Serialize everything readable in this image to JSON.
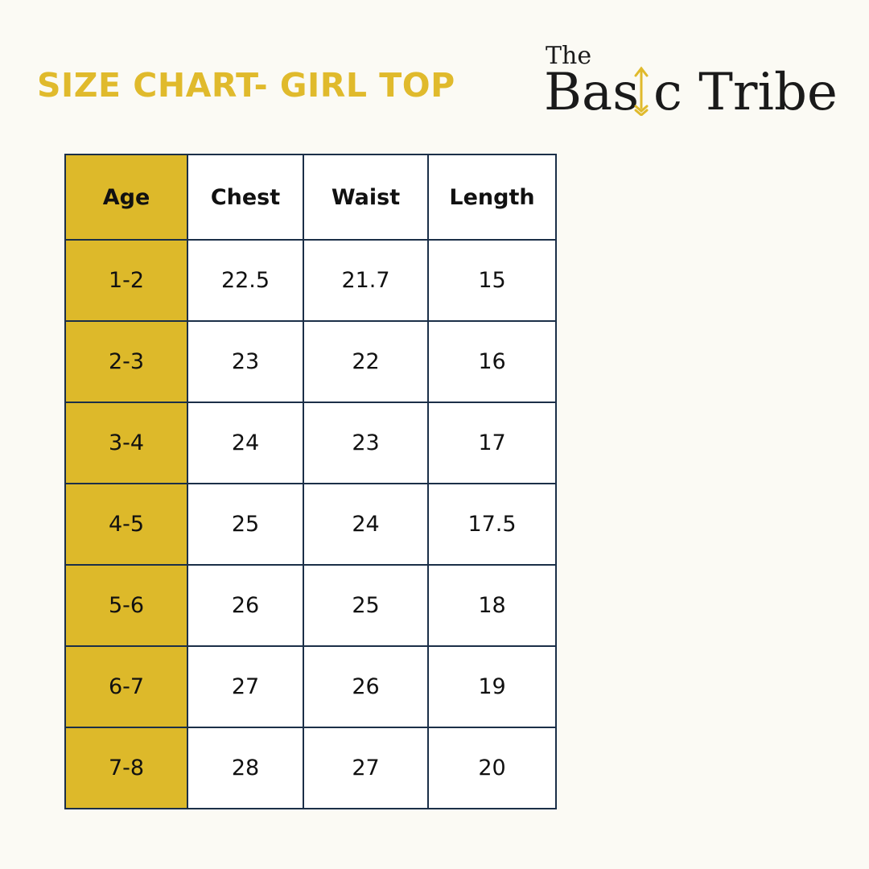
{
  "title": "SIZE CHART- GIRL TOP",
  "logo": {
    "top": "The",
    "main_left": "Bas",
    "main_right": "c Tribe",
    "arrow_color": "#e0ba2c"
  },
  "colors": {
    "accent": "#ddb92a",
    "border": "#1b2f48",
    "background": "#fbfaf4"
  },
  "table": {
    "headers": [
      "Age",
      "Chest",
      "Waist",
      "Length"
    ],
    "rows": [
      [
        "1-2",
        "22.5",
        "21.7",
        "15"
      ],
      [
        "2-3",
        "23",
        "22",
        "16"
      ],
      [
        "3-4",
        "24",
        "23",
        "17"
      ],
      [
        "4-5",
        "25",
        "24",
        "17.5"
      ],
      [
        "5-6",
        "26",
        "25",
        "18"
      ],
      [
        "6-7",
        "27",
        "26",
        "19"
      ],
      [
        "7-8",
        "28",
        "27",
        "20"
      ]
    ]
  }
}
